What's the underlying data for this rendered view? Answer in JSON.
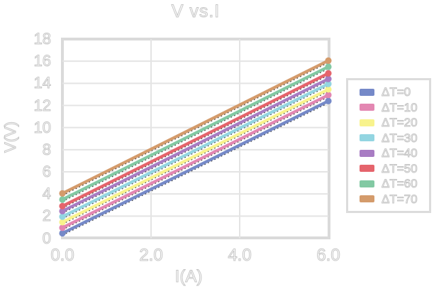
{
  "chart_data": {
    "type": "line",
    "title": "V vs.I",
    "xlabel": "I(A)",
    "ylabel": "V(V)",
    "xlim": [
      0,
      6
    ],
    "ylim": [
      0,
      18
    ],
    "x": [
      0,
      6
    ],
    "xtick_labels": [
      "0.0",
      "2.0",
      "4.0",
      "6.0"
    ],
    "xtick_values": [
      0,
      2,
      4,
      6
    ],
    "ytick_labels": [
      "0",
      "2",
      "4",
      "6",
      "8",
      "10",
      "12",
      "14",
      "16",
      "18"
    ],
    "ytick_values": [
      0,
      2,
      4,
      6,
      8,
      10,
      12,
      14,
      16,
      18
    ],
    "grid": true,
    "legend_position": "right-outside",
    "has_endpoint_markers": true,
    "has_dotted_black_trendlines": true,
    "series": [
      {
        "name": "ΔT=0",
        "color": "#7589c8",
        "values": [
          0.45,
          12.4
        ]
      },
      {
        "name": "ΔT=10",
        "color": "#e387b2",
        "values": [
          0.95,
          12.95
        ]
      },
      {
        "name": "ΔT=20",
        "color": "#f8f38d",
        "values": [
          1.45,
          13.45
        ]
      },
      {
        "name": "ΔT=30",
        "color": "#93d5e1",
        "values": [
          1.95,
          13.95
        ]
      },
      {
        "name": "ΔT=40",
        "color": "#a87cc3",
        "values": [
          2.45,
          14.4
        ]
      },
      {
        "name": "ΔT=50",
        "color": "#e5646c",
        "values": [
          2.9,
          14.9
        ]
      },
      {
        "name": "ΔT=60",
        "color": "#82c9a3",
        "values": [
          3.5,
          15.5
        ]
      },
      {
        "name": "ΔT=70",
        "color": "#d49b6b",
        "values": [
          4.05,
          16.05
        ]
      }
    ]
  },
  "styles": {
    "background": "#ffffff",
    "grid_color": "#e4e4e4",
    "frame_color": "#dadada",
    "text_outline_color": "#c6c6c6",
    "trendline_color": "#3a3a3a"
  }
}
